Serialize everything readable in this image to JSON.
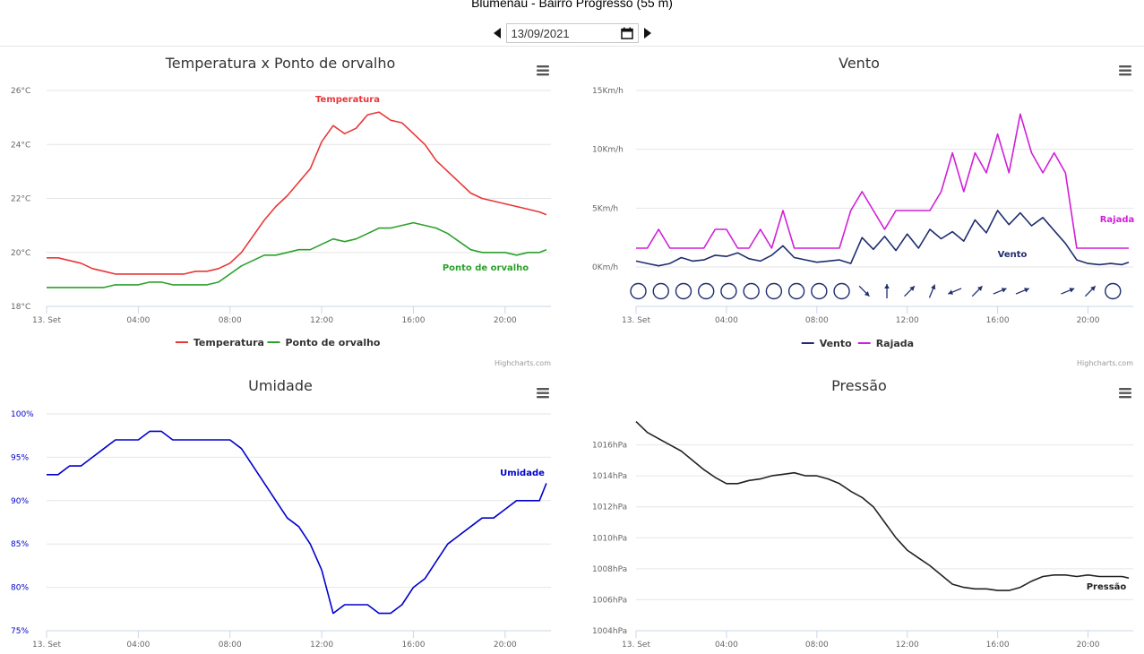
{
  "page": {
    "title": "Blumenau - Bairro Progresso (55 m)",
    "date_value": "13/09/2021"
  },
  "credits": "Highcharts.com",
  "chart_data": [
    {
      "id": "temp",
      "type": "line",
      "title": "Temperatura x Ponto de orvalho",
      "ytick_labels": [
        "18°C",
        "20°C",
        "22°C",
        "24°C",
        "26°C"
      ],
      "ylim": [
        18,
        26
      ],
      "xtick_labels": [
        "13. Set",
        "04:00",
        "08:00",
        "12:00",
        "16:00",
        "20:00"
      ],
      "xlim": [
        0,
        22
      ],
      "legend_position": "bottom-center",
      "series": [
        {
          "name": "Temperatura",
          "color": "#e8373a",
          "label": "Temperatura",
          "x": [
            0,
            0.5,
            1,
            1.5,
            2,
            2.5,
            3,
            3.5,
            4,
            4.5,
            5,
            5.5,
            6,
            6.5,
            7,
            7.5,
            8,
            8.5,
            9,
            9.5,
            10,
            10.5,
            11,
            11.5,
            12,
            12.5,
            13,
            13.5,
            14,
            14.5,
            15,
            15.5,
            16,
            16.5,
            17,
            17.5,
            18,
            18.5,
            19,
            19.5,
            20,
            20.5,
            21,
            21.5,
            21.8
          ],
          "values": [
            19.8,
            19.8,
            19.7,
            19.6,
            19.4,
            19.3,
            19.2,
            19.2,
            19.2,
            19.2,
            19.2,
            19.2,
            19.2,
            19.3,
            19.3,
            19.4,
            19.6,
            20.0,
            20.6,
            21.2,
            21.7,
            22.1,
            22.6,
            23.1,
            24.1,
            24.7,
            24.4,
            24.6,
            25.1,
            25.2,
            24.9,
            24.8,
            24.4,
            24.0,
            23.4,
            23.0,
            22.6,
            22.2,
            22.0,
            21.9,
            21.8,
            21.7,
            21.6,
            21.5,
            21.4
          ]
        },
        {
          "name": "Ponto de orvalho",
          "color": "#2ca02c",
          "label": "Ponto de orvalho",
          "x": [
            0,
            0.5,
            1,
            1.5,
            2,
            2.5,
            3,
            3.5,
            4,
            4.5,
            5,
            5.5,
            6,
            6.5,
            7,
            7.5,
            8,
            8.5,
            9,
            9.5,
            10,
            10.5,
            11,
            11.5,
            12,
            12.5,
            13,
            13.5,
            14,
            14.5,
            15,
            15.5,
            16,
            16.5,
            17,
            17.5,
            18,
            18.5,
            19,
            19.5,
            20,
            20.5,
            21,
            21.5,
            21.8
          ],
          "values": [
            18.7,
            18.7,
            18.7,
            18.7,
            18.7,
            18.7,
            18.8,
            18.8,
            18.8,
            18.9,
            18.9,
            18.8,
            18.8,
            18.8,
            18.8,
            18.9,
            19.2,
            19.5,
            19.7,
            19.9,
            19.9,
            20.0,
            20.1,
            20.1,
            20.3,
            20.5,
            20.4,
            20.5,
            20.7,
            20.9,
            20.9,
            21.0,
            21.1,
            21.0,
            20.9,
            20.7,
            20.4,
            20.1,
            20.0,
            20.0,
            20.0,
            19.9,
            20.0,
            20.0,
            20.1
          ]
        }
      ]
    },
    {
      "id": "wind",
      "type": "line",
      "title": "Vento",
      "ytick_labels": [
        "0Km/h",
        "5Km/h",
        "10Km/h",
        "15Km/h"
      ],
      "ylim": [
        0,
        15
      ],
      "xtick_labels": [
        "13. Set",
        "04:00",
        "08:00",
        "12:00",
        "16:00",
        "20:00"
      ],
      "xlim": [
        0,
        22
      ],
      "legend_position": "bottom-center",
      "direction_row": [
        "calm",
        "calm",
        "calm",
        "calm",
        "calm",
        "calm",
        "calm",
        "calm",
        "calm",
        "calm",
        "NW",
        "S",
        "SW",
        "SSW",
        "ENE",
        "SW",
        "WSW",
        "WSW",
        "",
        "WSW",
        "SW",
        "calm"
      ],
      "series": [
        {
          "name": "Vento",
          "color": "#1f2d6e",
          "label": "Vento",
          "x": [
            0,
            0.5,
            1,
            1.5,
            2,
            2.5,
            3,
            3.5,
            4,
            4.5,
            5,
            5.5,
            6,
            6.5,
            7,
            7.5,
            8,
            8.5,
            9,
            9.5,
            10,
            10.5,
            11,
            11.5,
            12,
            12.5,
            13,
            13.5,
            14,
            14.5,
            15,
            15.5,
            16,
            16.5,
            17,
            17.5,
            18,
            18.5,
            19,
            19.5,
            20,
            20.5,
            21,
            21.5,
            21.8
          ],
          "values": [
            0.5,
            0.3,
            0.1,
            0.3,
            0.8,
            0.5,
            0.6,
            1.0,
            0.9,
            1.2,
            0.7,
            0.5,
            1.0,
            1.8,
            0.8,
            0.6,
            0.4,
            0.5,
            0.6,
            0.3,
            2.5,
            1.5,
            2.6,
            1.4,
            2.8,
            1.6,
            3.2,
            2.4,
            3.0,
            2.2,
            4.0,
            2.9,
            4.8,
            3.6,
            4.6,
            3.5,
            4.2,
            3.1,
            2.0,
            0.6,
            0.3,
            0.2,
            0.3,
            0.2,
            0.4
          ]
        },
        {
          "name": "Rajada",
          "color": "#d11fd9",
          "label": "Rajada",
          "x": [
            0,
            0.5,
            1,
            1.5,
            2,
            2.5,
            3,
            3.5,
            4,
            4.5,
            5,
            5.5,
            6,
            6.5,
            7,
            7.5,
            8,
            8.5,
            9,
            9.5,
            10,
            10.5,
            11,
            11.5,
            12,
            12.5,
            13,
            13.5,
            14,
            14.5,
            15,
            15.5,
            16,
            16.5,
            17,
            17.5,
            18,
            18.5,
            19,
            19.5,
            20,
            20.5,
            21,
            21.5,
            21.8
          ],
          "values": [
            1.6,
            1.6,
            3.2,
            1.6,
            1.6,
            1.6,
            1.6,
            3.2,
            3.2,
            1.6,
            1.6,
            3.2,
            1.6,
            4.8,
            1.6,
            1.6,
            1.6,
            1.6,
            1.6,
            4.8,
            6.4,
            4.8,
            3.2,
            4.8,
            4.8,
            4.8,
            4.8,
            6.4,
            9.7,
            6.4,
            9.7,
            8.0,
            11.3,
            8.0,
            13.0,
            9.7,
            8.0,
            9.7,
            8.0,
            1.6,
            1.6,
            1.6,
            1.6,
            1.6,
            1.6
          ]
        }
      ]
    },
    {
      "id": "hum",
      "type": "line",
      "title": "Umidade",
      "ytick_labels": [
        "75%",
        "80%",
        "85%",
        "90%",
        "95%",
        "100%"
      ],
      "ylim": [
        75,
        100
      ],
      "xtick_labels": [
        "13. Set",
        "04:00",
        "08:00",
        "12:00",
        "16:00",
        "20:00"
      ],
      "xlim": [
        0,
        22
      ],
      "series": [
        {
          "name": "Umidade",
          "color": "#0000cc",
          "label": "Umidade",
          "x": [
            0,
            0.5,
            1,
            1.5,
            2,
            2.5,
            3,
            3.5,
            4,
            4.5,
            5,
            5.5,
            6,
            6.5,
            7,
            7.5,
            8,
            8.5,
            9,
            9.5,
            10,
            10.5,
            11,
            11.5,
            12,
            12.5,
            13,
            13.5,
            14,
            14.5,
            15,
            15.5,
            16,
            16.5,
            17,
            17.5,
            18,
            18.5,
            19,
            19.5,
            20,
            20.5,
            21,
            21.5,
            21.8
          ],
          "values": [
            93,
            93,
            94,
            94,
            95,
            96,
            97,
            97,
            97,
            98,
            98,
            97,
            97,
            97,
            97,
            97,
            97,
            96,
            94,
            92,
            90,
            88,
            87,
            85,
            82,
            77,
            78,
            78,
            78,
            77,
            77,
            78,
            80,
            81,
            83,
            85,
            86,
            87,
            88,
            88,
            89,
            90,
            90,
            90,
            92
          ]
        }
      ]
    },
    {
      "id": "pres",
      "type": "line",
      "title": "Pressão",
      "ytick_labels": [
        "1004hPa",
        "1006hPa",
        "1008hPa",
        "1010hPa",
        "1012hPa",
        "1014hPa",
        "1016hPa"
      ],
      "ylim": [
        1004,
        1018
      ],
      "xtick_labels": [
        "13. Set",
        "04:00",
        "08:00",
        "12:00",
        "16:00",
        "20:00"
      ],
      "xlim": [
        0,
        22
      ],
      "series": [
        {
          "name": "Pressão",
          "color": "#222222",
          "label": "Pressão",
          "x": [
            0,
            0.5,
            1,
            1.5,
            2,
            2.5,
            3,
            3.5,
            4,
            4.5,
            5,
            5.5,
            6,
            6.5,
            7,
            7.5,
            8,
            8.5,
            9,
            9.5,
            10,
            10.5,
            11,
            11.5,
            12,
            12.5,
            13,
            13.5,
            14,
            14.5,
            15,
            15.5,
            16,
            16.5,
            17,
            17.5,
            18,
            18.5,
            19,
            19.5,
            20,
            20.5,
            21,
            21.5,
            21.8
          ],
          "values": [
            1017.5,
            1016.8,
            1016.4,
            1016.0,
            1015.6,
            1015.0,
            1014.4,
            1013.9,
            1013.5,
            1013.5,
            1013.7,
            1013.8,
            1014.0,
            1014.1,
            1014.2,
            1014.0,
            1014.0,
            1013.8,
            1013.5,
            1013.0,
            1012.6,
            1012.0,
            1011.0,
            1010.0,
            1009.2,
            1008.7,
            1008.2,
            1007.6,
            1007.0,
            1006.8,
            1006.7,
            1006.7,
            1006.6,
            1006.6,
            1006.8,
            1007.2,
            1007.5,
            1007.6,
            1007.6,
            1007.5,
            1007.6,
            1007.5,
            1007.5,
            1007.5,
            1007.4
          ]
        }
      ]
    }
  ]
}
